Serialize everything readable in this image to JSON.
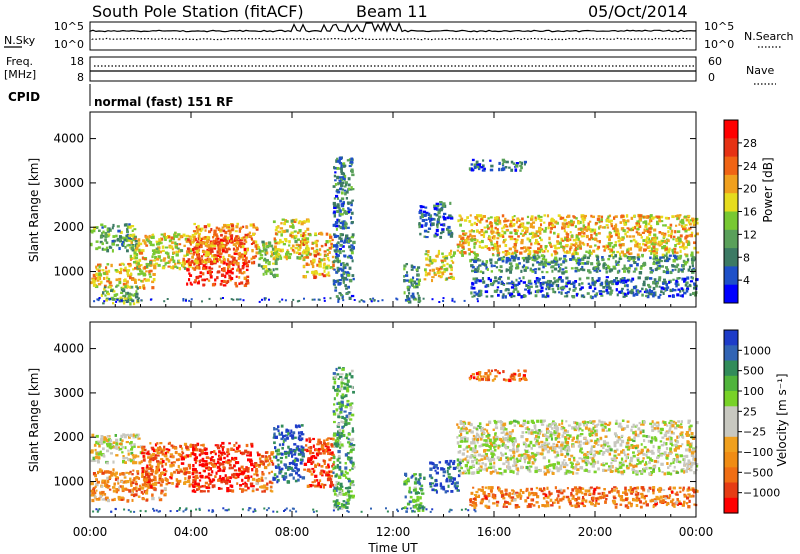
{
  "header": {
    "station": "South Pole Station (fitACF)",
    "beam": "Beam 11",
    "date": "05/Oct/2014"
  },
  "top_panels": {
    "nsky": {
      "label": "N.Sky",
      "tick_high": "10^5",
      "tick_low": "10^0"
    },
    "nsearch": {
      "label": "N.Search",
      "tick_high": "10^5",
      "tick_low": "10^0"
    },
    "freq": {
      "label_line1": "Freq.",
      "label_line2": "[MHz]",
      "tick_high": "18",
      "tick_low": "8"
    },
    "nave": {
      "label": "Nave",
      "tick_high": "60",
      "tick_low": "0"
    },
    "cpid": {
      "label": "CPID",
      "value": "normal (fast) 151 RF"
    }
  },
  "chart_data": [
    {
      "type": "heatmap",
      "name": "power",
      "ylabel": "Slant Range [km]",
      "xlabel": "",
      "x_ticks": [
        "00:00",
        "04:00",
        "08:00",
        "12:00",
        "16:00",
        "20:00",
        "00:00"
      ],
      "xlim": [
        0,
        24
      ],
      "ylim": [
        200,
        4600
      ],
      "y_ticks": [
        1000,
        2000,
        3000,
        4000
      ],
      "colorbar": {
        "label": "Power [dB]",
        "ticks": [
          "4",
          "8",
          "12",
          "16",
          "20",
          "24",
          "28"
        ],
        "colors": [
          "#0000ff",
          "#1e50c8",
          "#3c7a64",
          "#5aa05a",
          "#78c832",
          "#e6dc1e",
          "#f0a01e",
          "#f06414",
          "#e63214",
          "#ff0000"
        ]
      },
      "echo_bands": [
        {
          "t0": 0.0,
          "t1": 1.8,
          "r0": 1500,
          "r1": 2100,
          "level": 0.35
        },
        {
          "t0": 0.0,
          "t1": 2.5,
          "r0": 650,
          "r1": 1200,
          "level": 0.6
        },
        {
          "t0": 0.4,
          "t1": 2.0,
          "r0": 300,
          "r1": 700,
          "level": 0.4
        },
        {
          "t0": 1.5,
          "t1": 4.0,
          "r0": 1100,
          "r1": 1900,
          "level": 0.55
        },
        {
          "t0": 3.8,
          "t1": 6.2,
          "r0": 700,
          "r1": 1800,
          "level": 0.85
        },
        {
          "t0": 4.0,
          "t1": 6.6,
          "r0": 1200,
          "r1": 2100,
          "level": 0.7
        },
        {
          "t0": 6.6,
          "t1": 7.4,
          "r0": 900,
          "r1": 1700,
          "level": 0.45
        },
        {
          "t0": 7.2,
          "t1": 8.6,
          "r0": 1300,
          "r1": 2200,
          "level": 0.55
        },
        {
          "t0": 8.4,
          "t1": 9.6,
          "r0": 900,
          "r1": 1900,
          "level": 0.65
        },
        {
          "t0": 9.6,
          "t1": 10.4,
          "r0": 400,
          "r1": 3600,
          "level": 0.25
        },
        {
          "t0": 12.4,
          "t1": 13.0,
          "r0": 300,
          "r1": 1200,
          "level": 0.3
        },
        {
          "t0": 13.2,
          "t1": 14.4,
          "r0": 800,
          "r1": 1500,
          "level": 0.55
        },
        {
          "t0": 13.0,
          "t1": 14.3,
          "r0": 1800,
          "r1": 2600,
          "level": 0.2
        },
        {
          "t0": 14.5,
          "t1": 24.0,
          "r0": 1400,
          "r1": 2300,
          "level": 0.6
        },
        {
          "t0": 15.0,
          "t1": 24.0,
          "r0": 1000,
          "r1": 1400,
          "level": 0.3
        },
        {
          "t0": 15.0,
          "t1": 24.0,
          "r0": 450,
          "r1": 900,
          "level": 0.2
        },
        {
          "t0": 15.0,
          "t1": 17.2,
          "r0": 3300,
          "r1": 3550,
          "level": 0.2
        }
      ]
    },
    {
      "type": "heatmap",
      "name": "velocity",
      "ylabel": "Slant Range [km]",
      "xlabel": "Time UT",
      "x_ticks": [
        "00:00",
        "04:00",
        "08:00",
        "12:00",
        "16:00",
        "20:00",
        "00:00"
      ],
      "xlim": [
        0,
        24
      ],
      "ylim": [
        200,
        4600
      ],
      "y_ticks": [
        1000,
        2000,
        3000,
        4000
      ],
      "colorbar": {
        "label": "Velocity [m s⁻¹]",
        "ticks": [
          "1000",
          "500",
          "100",
          "25",
          "−25",
          "−100",
          "−500",
          "−1000"
        ],
        "colors": [
          "#1e3cc8",
          "#3264b4",
          "#328c5a",
          "#50b43c",
          "#78d228",
          "#c8c8c0",
          "#c8c8c0",
          "#f0a01e",
          "#f08c14",
          "#f06e14",
          "#e63c14",
          "#ff0000"
        ]
      },
      "echo_bands": [
        {
          "t0": 0.0,
          "t1": 2.0,
          "r0": 1450,
          "r1": 2100,
          "level": 0.5
        },
        {
          "t0": 0.0,
          "t1": 3.0,
          "r0": 600,
          "r1": 1300,
          "level": 0.72
        },
        {
          "t0": 2.0,
          "t1": 4.2,
          "r0": 900,
          "r1": 1900,
          "level": 0.8
        },
        {
          "t0": 4.0,
          "t1": 6.4,
          "r0": 800,
          "r1": 1900,
          "level": 0.92
        },
        {
          "t0": 6.4,
          "t1": 7.2,
          "r0": 800,
          "r1": 1700,
          "level": 0.75
        },
        {
          "t0": 7.2,
          "t1": 8.4,
          "r0": 1000,
          "r1": 2300,
          "level": 0.1
        },
        {
          "t0": 8.4,
          "t1": 9.6,
          "r0": 900,
          "r1": 2000,
          "level": 0.88
        },
        {
          "t0": 9.6,
          "t1": 10.4,
          "r0": 400,
          "r1": 3600,
          "level": 0.3
        },
        {
          "t0": 12.4,
          "t1": 13.2,
          "r0": 300,
          "r1": 1200,
          "level": 0.25
        },
        {
          "t0": 13.4,
          "t1": 14.6,
          "r0": 800,
          "r1": 1500,
          "level": 0.08
        },
        {
          "t0": 14.5,
          "t1": 24.0,
          "r0": 1200,
          "r1": 2400,
          "level": 0.5
        },
        {
          "t0": 15.0,
          "t1": 24.0,
          "r0": 450,
          "r1": 900,
          "level": 0.75
        },
        {
          "t0": 15.0,
          "t1": 17.2,
          "r0": 3300,
          "r1": 3550,
          "level": 0.8
        }
      ]
    }
  ]
}
